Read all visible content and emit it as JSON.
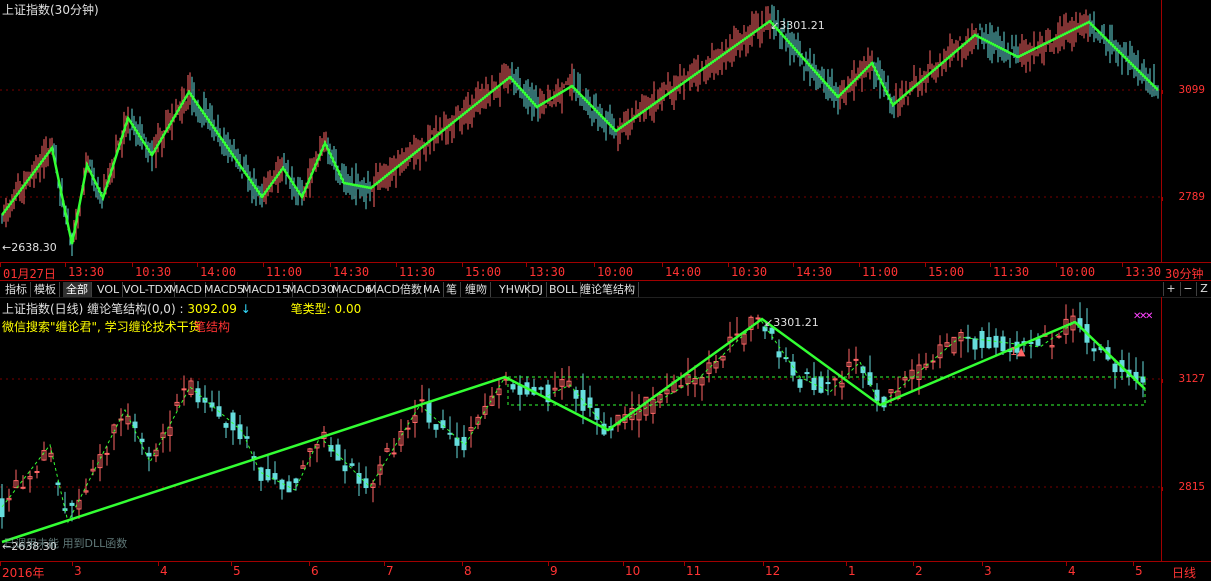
{
  "top_panel": {
    "title": "上证指数(30分钟)",
    "high_label": "3301.21",
    "low_label": "2638.30",
    "prices": [
      "3099",
      "2789"
    ],
    "interval": "30分钟",
    "time_labels": [
      "01月27日",
      "13:30",
      "10:30",
      "14:00",
      "11:00",
      "14:30",
      "11:30",
      "15:00",
      "13:30",
      "10:00",
      "14:00",
      "10:30",
      "14:30",
      "11:00",
      "15:00",
      "11:30",
      "10:00",
      "13:30"
    ]
  },
  "indicator_tabs": [
    "指标",
    "模板",
    "全部",
    "VOL",
    "VOL-TDX",
    "MACD",
    "MACD5",
    "MACD15",
    "MACD30",
    "MACD6",
    "MACD倍数",
    "MA",
    "笔",
    "缠吻",
    "YHW",
    "KDJ",
    "BOLL",
    "缠论笔结构"
  ],
  "window_buttons": [
    "+",
    "−",
    "Z"
  ],
  "bottom_panel": {
    "title": "上证指数(日线) 缠论笔结构(0,0) :",
    "value": "3092.09",
    "value_arrow": "↓",
    "bi_type_label": "笔类型: 0.00",
    "promo_text": "微信搜索\"缠论君\", 学习缠论技术干货",
    "promo_overlay": "笔结构",
    "high_label": "3301.21",
    "low_label": "2638.30",
    "dll_note": "已调用未能 用到DLL函数",
    "signal_mark": "1",
    "prices": [
      "3127",
      "2815"
    ],
    "period": "日线",
    "date_labels": [
      "2016年",
      "3",
      "4",
      "5",
      "6",
      "7",
      "8",
      "9",
      "10",
      "11",
      "12",
      "1",
      "2",
      "3",
      "4",
      "5"
    ]
  },
  "colors": {
    "bi_line": "#33ff33",
    "up_candle": "#ff6666",
    "down_candle": "#66dddd",
    "axis": "#a00000",
    "price_text": "#ff3333",
    "promo": "#ffff00",
    "promo_overlay": "#ff3333"
  }
}
